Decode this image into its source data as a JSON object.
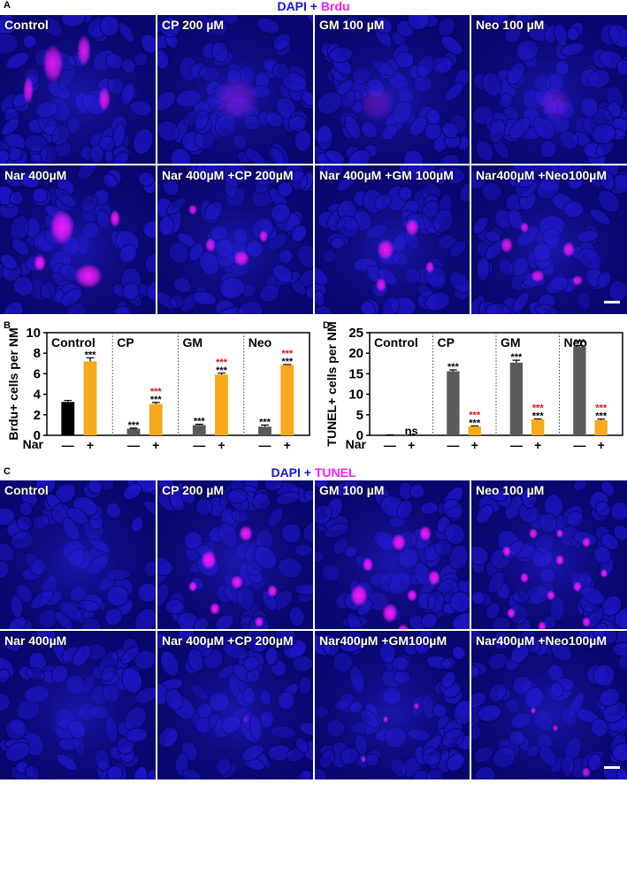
{
  "panel_a": {
    "letter": "A",
    "stain_title": {
      "dapi": "DAPI",
      "plus": " + ",
      "marker": "Brdu"
    },
    "tiles": [
      {
        "label": "Control",
        "seed": 11,
        "spots": [
          [
            60,
            55,
            12,
            22
          ],
          [
            95,
            40,
            8,
            18
          ],
          [
            32,
            85,
            6,
            16
          ],
          [
            118,
            95,
            7,
            14
          ]
        ],
        "spot_opacity": 0.85
      },
      {
        "label": "CP 200 µM",
        "seed": 23,
        "spots": [
          [
            90,
            95,
            25,
            0.35
          ]
        ],
        "spot_opacity": 0.3
      },
      {
        "label": "GM 100 µM",
        "seed": 37,
        "spots": [
          [
            70,
            100,
            20,
            0.3
          ]
        ],
        "spot_opacity": 0.25
      },
      {
        "label": "Neo 100 µM",
        "seed": 41,
        "spots": [
          [
            95,
            100,
            18,
            0.3
          ]
        ],
        "spot_opacity": 0.25
      },
      {
        "label": "Nar 400µM",
        "seed": 53,
        "spots": [
          [
            70,
            70,
            14,
            20
          ],
          [
            100,
            125,
            16,
            14
          ],
          [
            45,
            110,
            7,
            10
          ],
          [
            130,
            60,
            6,
            10
          ]
        ],
        "spot_opacity": 0.95
      },
      {
        "label": "Nar 400µM +CP 200µM",
        "seed": 61,
        "spots": [
          [
            95,
            105,
            9,
            9
          ],
          [
            60,
            90,
            6,
            8
          ],
          [
            120,
            80,
            5,
            7
          ],
          [
            40,
            50,
            5,
            6
          ]
        ],
        "spot_opacity": 0.9
      },
      {
        "label": "Nar 400µM +GM 100µM",
        "seed": 71,
        "spots": [
          [
            80,
            95,
            10,
            12
          ],
          [
            110,
            70,
            8,
            10
          ],
          [
            75,
            135,
            6,
            8
          ],
          [
            130,
            115,
            5,
            7
          ]
        ],
        "spot_opacity": 0.9
      },
      {
        "label": "Nar400µM +Neo100µM",
        "seed": 83,
        "spots": [
          [
            40,
            90,
            7,
            9
          ],
          [
            75,
            125,
            8,
            7
          ],
          [
            110,
            95,
            7,
            9
          ],
          [
            120,
            130,
            6,
            6
          ],
          [
            60,
            70,
            5,
            6
          ]
        ],
        "spot_opacity": 0.9
      }
    ]
  },
  "panel_c": {
    "letter": "C",
    "stain_title": {
      "dapi": "DAPI",
      "plus": " + ",
      "marker": "TUNEL"
    },
    "tiles": [
      {
        "label": "Control",
        "seed": 97,
        "spots": [],
        "spot_opacity": 0
      },
      {
        "label": "CP 200 µM",
        "seed": 101,
        "spots": [
          [
            58,
            90,
            9,
            11
          ],
          [
            100,
            60,
            8,
            9
          ],
          [
            90,
            115,
            7,
            8
          ],
          [
            65,
            145,
            6,
            7
          ],
          [
            130,
            125,
            6,
            7
          ],
          [
            115,
            160,
            5,
            6
          ],
          [
            40,
            120,
            5,
            6
          ]
        ],
        "spot_opacity": 1
      },
      {
        "label": "GM 100 µM",
        "seed": 113,
        "spots": [
          [
            50,
            130,
            10,
            13
          ],
          [
            95,
            70,
            8,
            10
          ],
          [
            125,
            60,
            7,
            9
          ],
          [
            85,
            150,
            9,
            11
          ],
          [
            135,
            110,
            7,
            9
          ],
          [
            60,
            95,
            6,
            8
          ],
          [
            110,
            130,
            6,
            7
          ],
          [
            100,
            170,
            7,
            8
          ]
        ],
        "spot_opacity": 1
      },
      {
        "label": "Neo 100 µM",
        "seed": 127,
        "spots": [
          [
            40,
            80,
            5,
            6
          ],
          [
            70,
            60,
            5,
            6
          ],
          [
            100,
            90,
            5,
            6
          ],
          [
            130,
            70,
            5,
            6
          ],
          [
            60,
            110,
            5,
            6
          ],
          [
            90,
            130,
            5,
            6
          ],
          [
            120,
            120,
            5,
            6
          ],
          [
            45,
            150,
            5,
            6
          ],
          [
            80,
            165,
            5,
            6
          ],
          [
            130,
            160,
            5,
            6
          ],
          [
            100,
            60,
            4,
            5
          ],
          [
            150,
            105,
            4,
            5
          ]
        ],
        "spot_opacity": 1
      },
      {
        "label": "Nar 400µM",
        "seed": 131,
        "spots": [],
        "spot_opacity": 0
      },
      {
        "label": "Nar 400µM +CP 200µM",
        "seed": 139,
        "spots": [
          [
            100,
            100,
            4,
            4
          ]
        ],
        "spot_opacity": 0.3
      },
      {
        "label": "Nar400µM +GM100µM",
        "seed": 149,
        "spots": [
          [
            80,
            100,
            3,
            4
          ],
          [
            115,
            85,
            3,
            4
          ],
          [
            55,
            145,
            3,
            4
          ]
        ],
        "spot_opacity": 0.8
      },
      {
        "label": "Nar400µM +Neo100µM",
        "seed": 151,
        "spots": [
          [
            70,
            90,
            3,
            4
          ],
          [
            95,
            110,
            3,
            4
          ],
          [
            130,
            160,
            5,
            6
          ]
        ],
        "spot_opacity": 0.8
      }
    ]
  },
  "colors": {
    "dapi": "#1a12e8",
    "marker": "#ff1aff",
    "tile_bg": "#0a0870",
    "bar_no_nar_control": "#000000",
    "bar_no_nar": "#5a5a5a",
    "bar_nar": "#f7a81b",
    "sig_black": "#000000",
    "sig_red": "#e01010"
  },
  "chart_data": [
    {
      "panel_letter": "B",
      "type": "bar",
      "ylabel": "Brdu+ cells per NM",
      "ylim": [
        0,
        10
      ],
      "yticks": [
        "0",
        "2",
        "4",
        "6",
        "8",
        "10"
      ],
      "groups": [
        "Control",
        "CP",
        "GM",
        "Neo"
      ],
      "x_axis_label": "Nar",
      "x_tick_symbols": [
        "—",
        "+"
      ],
      "series": [
        {
          "values": [
            3.25,
            0.65,
            1.0,
            0.85
          ],
          "errors": [
            0.15,
            0.05,
            0.08,
            0.15
          ]
        },
        {
          "values": [
            7.2,
            3.05,
            5.9,
            6.85
          ],
          "errors": [
            0.35,
            0.15,
            0.15,
            0.05
          ]
        }
      ],
      "annotations": [
        {
          "group": 0,
          "bar": 1,
          "lines": [
            {
              "text": "***",
              "color": "black"
            }
          ]
        },
        {
          "group": 1,
          "bar": 0,
          "lines": [
            {
              "text": "***",
              "color": "black"
            }
          ]
        },
        {
          "group": 1,
          "bar": 1,
          "lines": [
            {
              "text": "***",
              "color": "red"
            },
            {
              "text": "***",
              "color": "black"
            }
          ]
        },
        {
          "group": 2,
          "bar": 0,
          "lines": [
            {
              "text": "***",
              "color": "black"
            }
          ]
        },
        {
          "group": 2,
          "bar": 1,
          "lines": [
            {
              "text": "***",
              "color": "red"
            },
            {
              "text": "***",
              "color": "black"
            }
          ]
        },
        {
          "group": 3,
          "bar": 0,
          "lines": [
            {
              "text": "***",
              "color": "black"
            }
          ]
        },
        {
          "group": 3,
          "bar": 1,
          "lines": [
            {
              "text": "***",
              "color": "red"
            },
            {
              "text": "***",
              "color": "black"
            }
          ]
        }
      ]
    },
    {
      "panel_letter": "D",
      "type": "bar",
      "ylabel": "TUNEL+ cells per NM",
      "ylim": [
        0,
        25
      ],
      "yticks": [
        "0",
        "5",
        "10",
        "15",
        "20",
        "25"
      ],
      "groups": [
        "Control",
        "CP",
        "GM",
        "Neo"
      ],
      "x_axis_label": "Nar",
      "x_tick_symbols": [
        "—",
        "+"
      ],
      "series": [
        {
          "values": [
            0.05,
            15.6,
            17.7,
            21.6
          ],
          "errors": [
            0.05,
            0.35,
            0.6,
            0.3
          ]
        },
        {
          "values": [
            0.1,
            2.2,
            3.9,
            3.7
          ],
          "errors": [
            0.05,
            0.1,
            0.1,
            0.25
          ]
        }
      ],
      "annotations": [
        {
          "group": 0,
          "bar": 1,
          "lines": [
            {
              "text": "ns",
              "color": "black"
            }
          ]
        },
        {
          "group": 1,
          "bar": 0,
          "lines": [
            {
              "text": "***",
              "color": "black"
            }
          ]
        },
        {
          "group": 1,
          "bar": 1,
          "lines": [
            {
              "text": "***",
              "color": "red"
            },
            {
              "text": "***",
              "color": "black"
            }
          ]
        },
        {
          "group": 2,
          "bar": 0,
          "lines": [
            {
              "text": "***",
              "color": "black"
            }
          ]
        },
        {
          "group": 2,
          "bar": 1,
          "lines": [
            {
              "text": "***",
              "color": "red"
            },
            {
              "text": "***",
              "color": "black"
            }
          ]
        },
        {
          "group": 3,
          "bar": 0,
          "lines": [
            {
              "text": "***",
              "color": "black"
            }
          ]
        },
        {
          "group": 3,
          "bar": 1,
          "lines": [
            {
              "text": "***",
              "color": "red"
            },
            {
              "text": "***",
              "color": "black"
            }
          ]
        }
      ]
    }
  ]
}
